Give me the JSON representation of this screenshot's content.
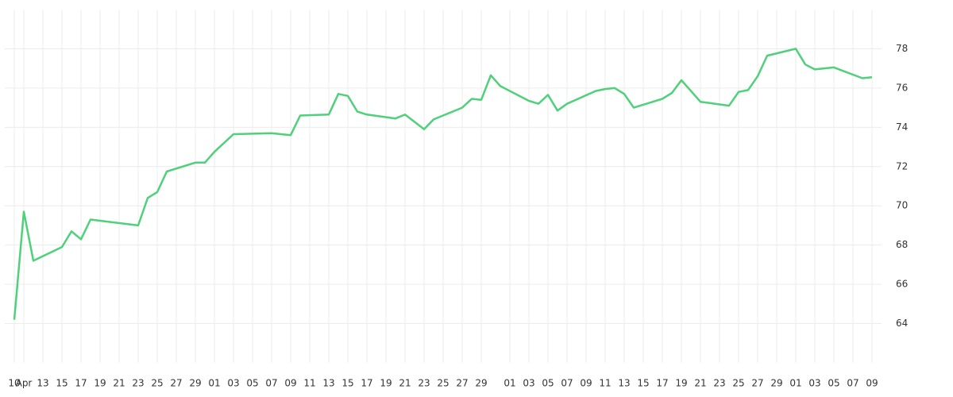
{
  "chart_data": {
    "type": "line",
    "x": [
      "04-10",
      "04-11",
      "04-12",
      "04-15",
      "04-16",
      "04-17",
      "04-18",
      "04-23",
      "04-24",
      "04-25",
      "04-26",
      "04-29",
      "04-30",
      "05-01",
      "05-03",
      "05-07",
      "05-09",
      "05-10",
      "05-13",
      "05-14",
      "05-15",
      "05-16",
      "05-17",
      "05-20",
      "05-21",
      "05-23",
      "05-24",
      "05-27",
      "05-28",
      "05-29",
      "05-30",
      "05-31",
      "06-03",
      "06-04",
      "06-05",
      "06-06",
      "06-07",
      "06-10",
      "06-11",
      "06-12",
      "06-13",
      "06-14",
      "06-17",
      "06-18",
      "06-19",
      "06-20",
      "06-21",
      "06-24",
      "06-25",
      "06-26",
      "06-27",
      "06-28",
      "07-01",
      "07-02",
      "07-03",
      "07-05",
      "07-08",
      "07-09"
    ],
    "series": [
      {
        "color": "#4fd07a",
        "values": [
          64.2,
          69.7,
          67.2,
          67.9,
          68.7,
          68.3,
          69.3,
          69.0,
          70.4,
          70.7,
          71.75,
          72.2,
          72.2,
          72.75,
          73.65,
          73.7,
          73.6,
          74.6,
          74.65,
          75.7,
          75.6,
          74.8,
          74.65,
          74.45,
          74.65,
          73.9,
          74.4,
          75.0,
          75.45,
          75.4,
          76.65,
          76.1,
          75.35,
          75.2,
          75.65,
          74.85,
          75.2,
          75.85,
          75.95,
          76.0,
          75.7,
          75.0,
          75.45,
          75.75,
          76.4,
          75.85,
          75.3,
          75.1,
          75.8,
          75.9,
          76.6,
          77.65,
          78.0,
          77.2,
          76.95,
          77.05,
          76.5,
          76.55
        ]
      }
    ],
    "xlim": [
      "04-09",
      "07-10"
    ],
    "xticks": [
      {
        "value": "04-10",
        "label": "10"
      },
      {
        "value": "04-11",
        "label": "Apr"
      },
      {
        "value": "04-13",
        "label": "13"
      },
      {
        "value": "04-15",
        "label": "15"
      },
      {
        "value": "04-17",
        "label": "17"
      },
      {
        "value": "04-19",
        "label": "19"
      },
      {
        "value": "04-21",
        "label": "21"
      },
      {
        "value": "04-23",
        "label": "23"
      },
      {
        "value": "04-25",
        "label": "25"
      },
      {
        "value": "04-27",
        "label": "27"
      },
      {
        "value": "04-29",
        "label": "29"
      },
      {
        "value": "05-01",
        "label": "01"
      },
      {
        "value": "05-03",
        "label": "03"
      },
      {
        "value": "05-05",
        "label": "05"
      },
      {
        "value": "05-07",
        "label": "07"
      },
      {
        "value": "05-09",
        "label": "09"
      },
      {
        "value": "05-11",
        "label": "11"
      },
      {
        "value": "05-13",
        "label": "13"
      },
      {
        "value": "05-15",
        "label": "15"
      },
      {
        "value": "05-17",
        "label": "17"
      },
      {
        "value": "05-19",
        "label": "19"
      },
      {
        "value": "05-21",
        "label": "21"
      },
      {
        "value": "05-23",
        "label": "23"
      },
      {
        "value": "05-25",
        "label": "25"
      },
      {
        "value": "05-27",
        "label": "27"
      },
      {
        "value": "05-29",
        "label": "29"
      },
      {
        "value": "06-01",
        "label": "01"
      },
      {
        "value": "06-03",
        "label": "03"
      },
      {
        "value": "06-05",
        "label": "05"
      },
      {
        "value": "06-07",
        "label": "07"
      },
      {
        "value": "06-09",
        "label": "09"
      },
      {
        "value": "06-11",
        "label": "11"
      },
      {
        "value": "06-13",
        "label": "13"
      },
      {
        "value": "06-15",
        "label": "15"
      },
      {
        "value": "06-17",
        "label": "17"
      },
      {
        "value": "06-19",
        "label": "19"
      },
      {
        "value": "06-21",
        "label": "21"
      },
      {
        "value": "06-23",
        "label": "23"
      },
      {
        "value": "06-25",
        "label": "25"
      },
      {
        "value": "06-27",
        "label": "27"
      },
      {
        "value": "06-29",
        "label": "29"
      },
      {
        "value": "07-01",
        "label": "01"
      },
      {
        "value": "07-03",
        "label": "03"
      },
      {
        "value": "07-05",
        "label": "05"
      },
      {
        "value": "07-07",
        "label": "07"
      },
      {
        "value": "07-09",
        "label": "09"
      }
    ],
    "ylim": [
      62,
      80
    ],
    "yticks": [
      64,
      66,
      68,
      70,
      72,
      74,
      76,
      78
    ],
    "grid": true
  }
}
